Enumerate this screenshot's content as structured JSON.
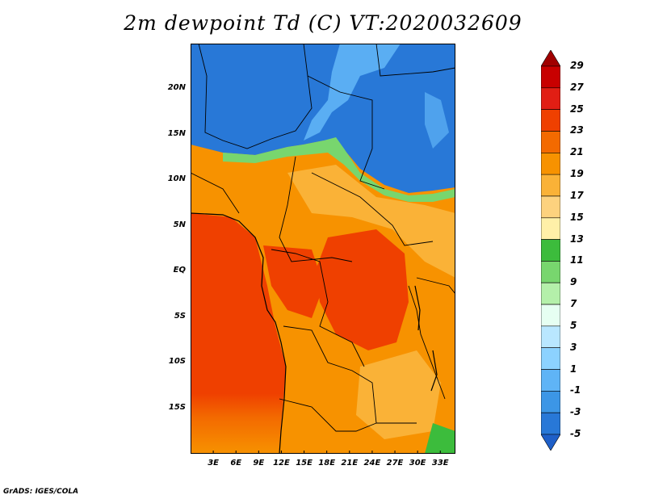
{
  "title": "2m dewpoint Td (C) VT:2020032609",
  "credit": "GrADS: IGES/COLA",
  "map": {
    "region": "Central Africa",
    "lon_range": [
      0,
      35
    ],
    "lat_range": [
      -20,
      25
    ],
    "lat_labels": [
      {
        "lat": 20,
        "text": "20N"
      },
      {
        "lat": 15,
        "text": "15N"
      },
      {
        "lat": 10,
        "text": "10N"
      },
      {
        "lat": 5,
        "text": "5N"
      },
      {
        "lat": 0,
        "text": "EQ"
      },
      {
        "lat": -5,
        "text": "5S"
      },
      {
        "lat": -10,
        "text": "10S"
      },
      {
        "lat": -15,
        "text": "15S"
      }
    ],
    "lon_labels": [
      {
        "lon": 3,
        "text": "3E"
      },
      {
        "lon": 6,
        "text": "6E"
      },
      {
        "lon": 9,
        "text": "9E"
      },
      {
        "lon": 12,
        "text": "12E"
      },
      {
        "lon": 15,
        "text": "15E"
      },
      {
        "lon": 18,
        "text": "18E"
      },
      {
        "lon": 21,
        "text": "21E"
      },
      {
        "lon": 24,
        "text": "24E"
      },
      {
        "lon": 27,
        "text": "27E"
      },
      {
        "lon": 30,
        "text": "30E"
      },
      {
        "lon": 33,
        "text": "33E"
      }
    ]
  },
  "colorbar": {
    "labels": [
      "29",
      "27",
      "25",
      "23",
      "21",
      "19",
      "17",
      "15",
      "13",
      "11",
      "9",
      "7",
      "5",
      "3",
      "1",
      "-1",
      "-3",
      "-5"
    ],
    "colors_top_to_bottom": [
      "#a00000",
      "#c80000",
      "#e11e14",
      "#ef4000",
      "#f36a00",
      "#f79200",
      "#fab237",
      "#fdd27e",
      "#fff0a8",
      "#3cbc3c",
      "#78d66e",
      "#b4f0aa",
      "#e6fff2",
      "#b9e7ff",
      "#8cd2ff",
      "#5fb4f6",
      "#3c96e6",
      "#2878d7",
      "#1e5fc8"
    ]
  }
}
